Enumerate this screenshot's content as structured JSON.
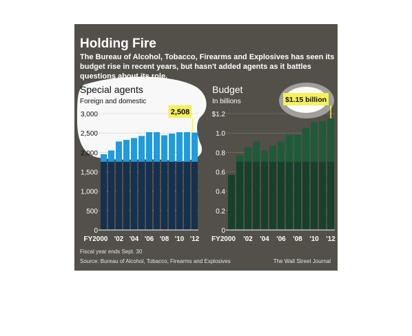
{
  "title": "Holding Fire",
  "description_lines": [
    "The Bureau of Alcohol, Tobacco, Firearms and Explosives has seen its",
    "budget rise in recent years, but hasn't added agents as it battles",
    "questions about its role."
  ],
  "footnote": "Fiscal year ends Sept. 30",
  "source": "Source: Bureau of Alcohol, Tobacco, Firearms and Explosives",
  "credit": "The Wall Street Journal",
  "colors": {
    "background": "#525048",
    "agents_bar": "#1f9be0",
    "agents_bar_dark": "#15314f",
    "budget_bar": "#1f5a3a",
    "budget_bar_dark": "#17412b",
    "highlight": "#f6f05a",
    "spotlight": "#ffffff"
  },
  "chart_data": [
    {
      "type": "bar",
      "title": "Special agents",
      "subtitle": "Foreign and domestic",
      "x": [
        2000,
        2001,
        2002,
        2003,
        2004,
        2005,
        2006,
        2007,
        2008,
        2009,
        2010,
        2011,
        2012
      ],
      "x_tick_labels": [
        "FY2000",
        "'02",
        "'04",
        "'06",
        "'08",
        "'10",
        "'12"
      ],
      "x_tick_values": [
        2000,
        2002,
        2004,
        2006,
        2008,
        2010,
        2012
      ],
      "values": [
        1950,
        2050,
        2280,
        2320,
        2370,
        2420,
        2520,
        2520,
        2440,
        2480,
        2520,
        2520,
        2508
      ],
      "y_ticks": [
        "0",
        "500",
        "1,000",
        "1,500",
        "2,000",
        "2,500",
        "3,000"
      ],
      "y_tick_values": [
        0,
        500,
        1000,
        1500,
        2000,
        2500,
        3000
      ],
      "ylim": [
        0,
        3000
      ],
      "grid": true,
      "annotation": "2,508"
    },
    {
      "type": "bar",
      "title": "Budget",
      "subtitle": "In billions",
      "x": [
        2000,
        2001,
        2002,
        2003,
        2004,
        2005,
        2006,
        2007,
        2008,
        2009,
        2010,
        2011,
        2012
      ],
      "x_tick_labels": [
        "FY2000",
        "'02",
        "'04",
        "'06",
        "'08",
        "'10",
        "'12"
      ],
      "x_tick_values": [
        2000,
        2002,
        2004,
        2006,
        2008,
        2010,
        2012
      ],
      "values": [
        0.57,
        0.77,
        0.85,
        0.91,
        0.82,
        0.87,
        0.91,
        0.98,
        0.98,
        1.05,
        1.11,
        1.12,
        1.15
      ],
      "y_ticks": [
        "0",
        "0.2",
        "0.4",
        "0.6",
        "0.8",
        "1.0",
        "$1.2"
      ],
      "y_tick_values": [
        0,
        0.2,
        0.4,
        0.6,
        0.8,
        1.0,
        1.2
      ],
      "ylim": [
        0,
        1.2
      ],
      "grid": true,
      "annotation": "$1.15 billion"
    }
  ]
}
